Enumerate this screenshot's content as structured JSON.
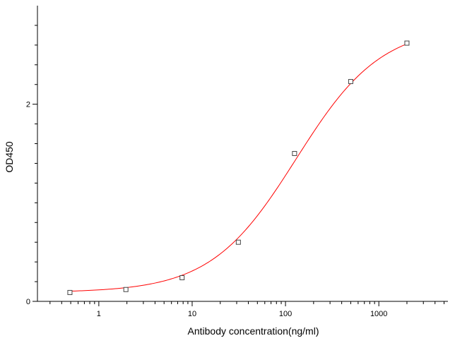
{
  "chart_data": {
    "type": "scatter",
    "title": "",
    "xlabel": "Antibody concentration(ng/ml)",
    "ylabel": "OD450",
    "x_scale": "log",
    "xlim": [
      0.22,
      5500
    ],
    "ylim": [
      0,
      3.0
    ],
    "x_ticks": [
      1,
      10,
      100,
      1000
    ],
    "x_tick_labels": [
      "1",
      "10",
      "100",
      "1000"
    ],
    "y_ticks": [
      0,
      2
    ],
    "y_tick_labels": [
      "0",
      "2"
    ],
    "grid": false,
    "legend": "none",
    "series": [
      {
        "marker": "open-square",
        "x": [
          0.49,
          1.95,
          7.8,
          31.25,
          125,
          500,
          2000
        ],
        "y": [
          0.09,
          0.12,
          0.24,
          0.6,
          1.5,
          2.23,
          2.62
        ]
      }
    ],
    "fit_curve": {
      "model": "4PL",
      "color": "#ff0000",
      "bottom": 0.09,
      "top": 2.8,
      "ec50": 130,
      "hill": 0.95
    },
    "colors": {
      "marker": "#444444",
      "curve": "#ff0000",
      "axis": "#000000"
    }
  }
}
